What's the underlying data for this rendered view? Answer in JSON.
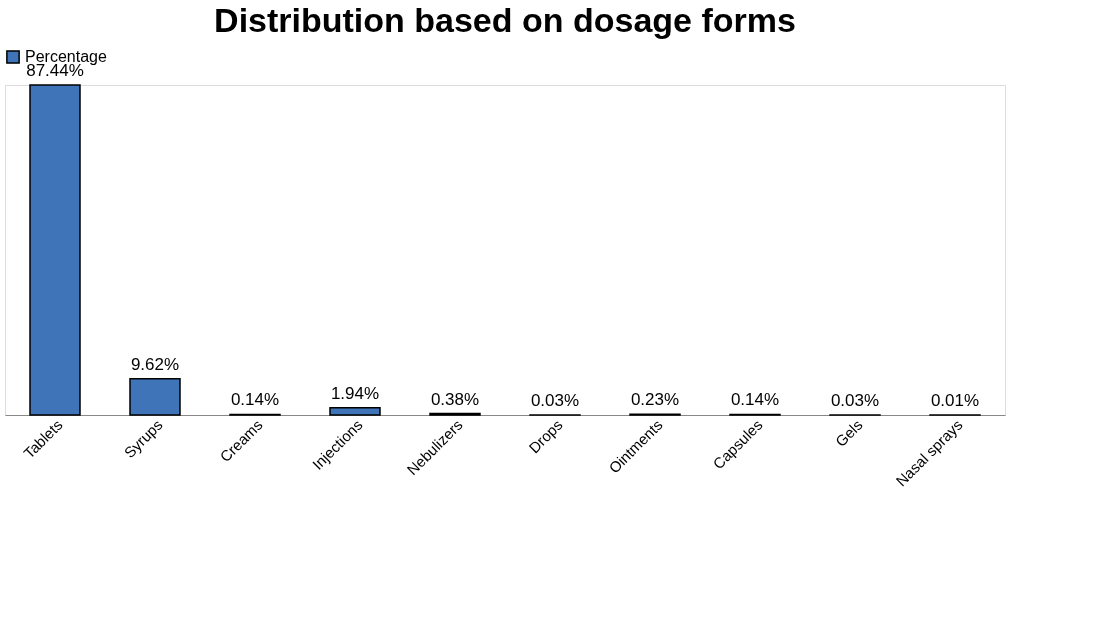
{
  "chart_data": {
    "type": "bar",
    "title": "Distribution based on dosage forms",
    "categories": [
      "Tablets",
      "Syrups",
      "Creams",
      "Injections",
      "Nebulizers",
      "Drops",
      "Ointments",
      "Capsules",
      "Gels",
      "Nasal sprays"
    ],
    "series": [
      {
        "name": "Percentage",
        "color": "#3f74b8",
        "values": [
          87.44,
          9.62,
          0.14,
          1.94,
          0.38,
          0.03,
          0.23,
          0.14,
          0.03,
          0.01
        ],
        "value_labels": [
          "87.44%",
          "9.62%",
          "0.14%",
          "1.94%",
          "0.38%",
          "0.03%",
          "0.23%",
          "0.14%",
          "0.03%",
          "0.01%"
        ]
      }
    ],
    "legend": "top",
    "grid": false
  }
}
